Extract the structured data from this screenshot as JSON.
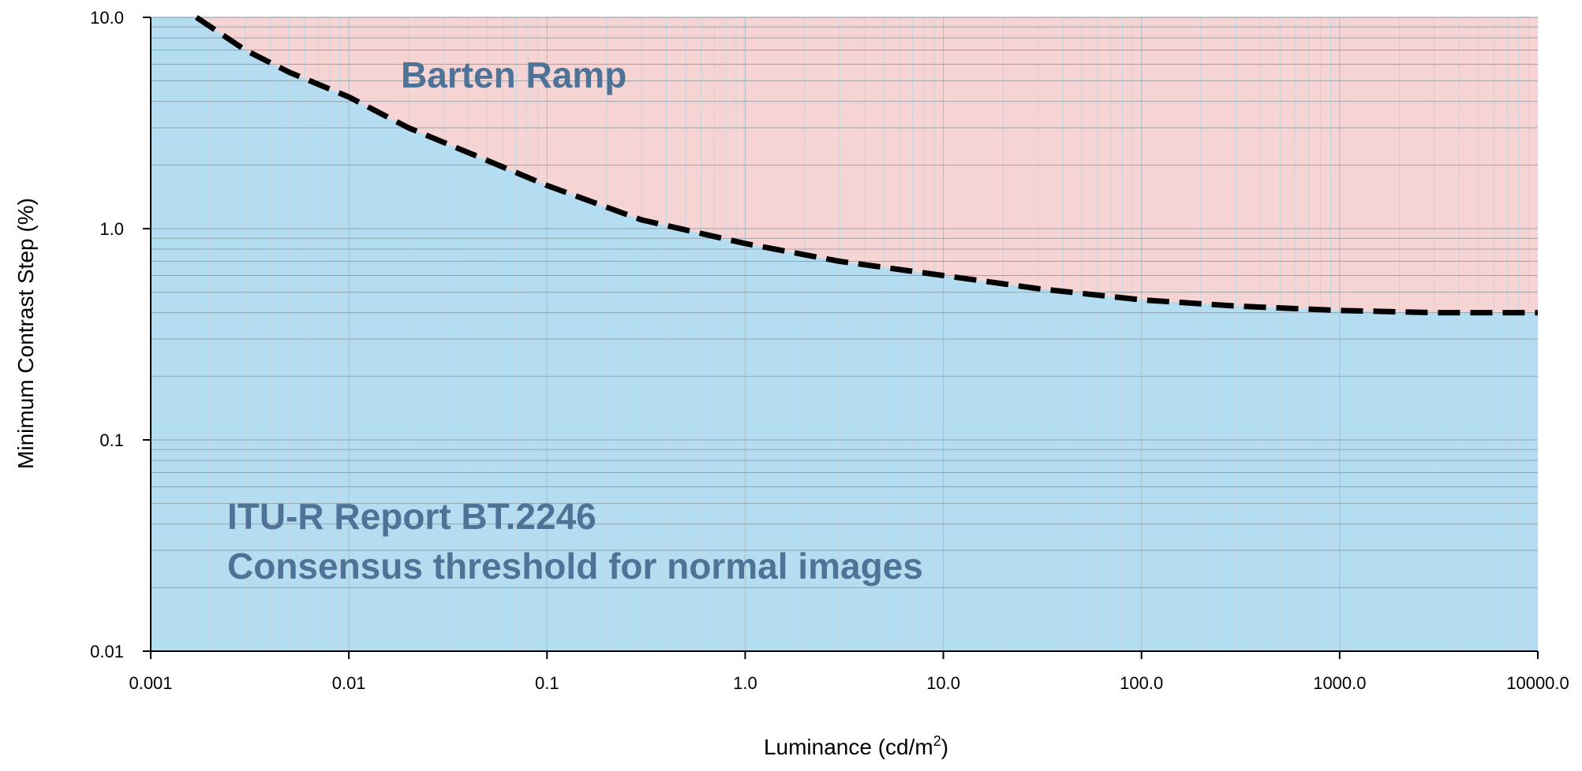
{
  "chart_data": {
    "type": "line",
    "xscale": "log",
    "yscale": "log",
    "xlim": [
      0.001,
      10000
    ],
    "ylim": [
      0.01,
      10
    ],
    "xlabel": "Luminance (cd/m",
    "xlabel_sup": "2",
    "xlabel_suffix": ")",
    "ylabel": "Minimum Contrast Step (%)",
    "x_tick_labels": [
      "0.001",
      "0.01",
      "0.1",
      "1.0",
      "10.0",
      "100.0",
      "1000.0",
      "10000.0"
    ],
    "y_tick_labels": [
      "0.01",
      "0.1",
      "1.0",
      "10.0"
    ],
    "grid": true,
    "series": [
      {
        "name": "Barten Ramp",
        "style": "dashed",
        "color": "#000000",
        "x": [
          0.0017,
          0.003,
          0.005,
          0.01,
          0.02,
          0.05,
          0.1,
          0.3,
          1,
          3,
          10,
          30,
          100,
          300,
          1000,
          3000,
          10000
        ],
        "y": [
          10.0,
          7.0,
          5.5,
          4.2,
          3.0,
          2.1,
          1.6,
          1.1,
          0.85,
          0.7,
          0.6,
          0.52,
          0.46,
          0.43,
          0.41,
          0.4,
          0.4
        ]
      }
    ],
    "annotations": {
      "above": "Barten Ramp",
      "below_line1": "ITU-R Report BT.2246",
      "below_line2": "Consensus threshold for normal images"
    },
    "colors": {
      "above_fill": "#f7d4d4",
      "below_fill": "#b5ddf2",
      "annotation_text": "#4e7396",
      "curve": "#000000"
    }
  }
}
